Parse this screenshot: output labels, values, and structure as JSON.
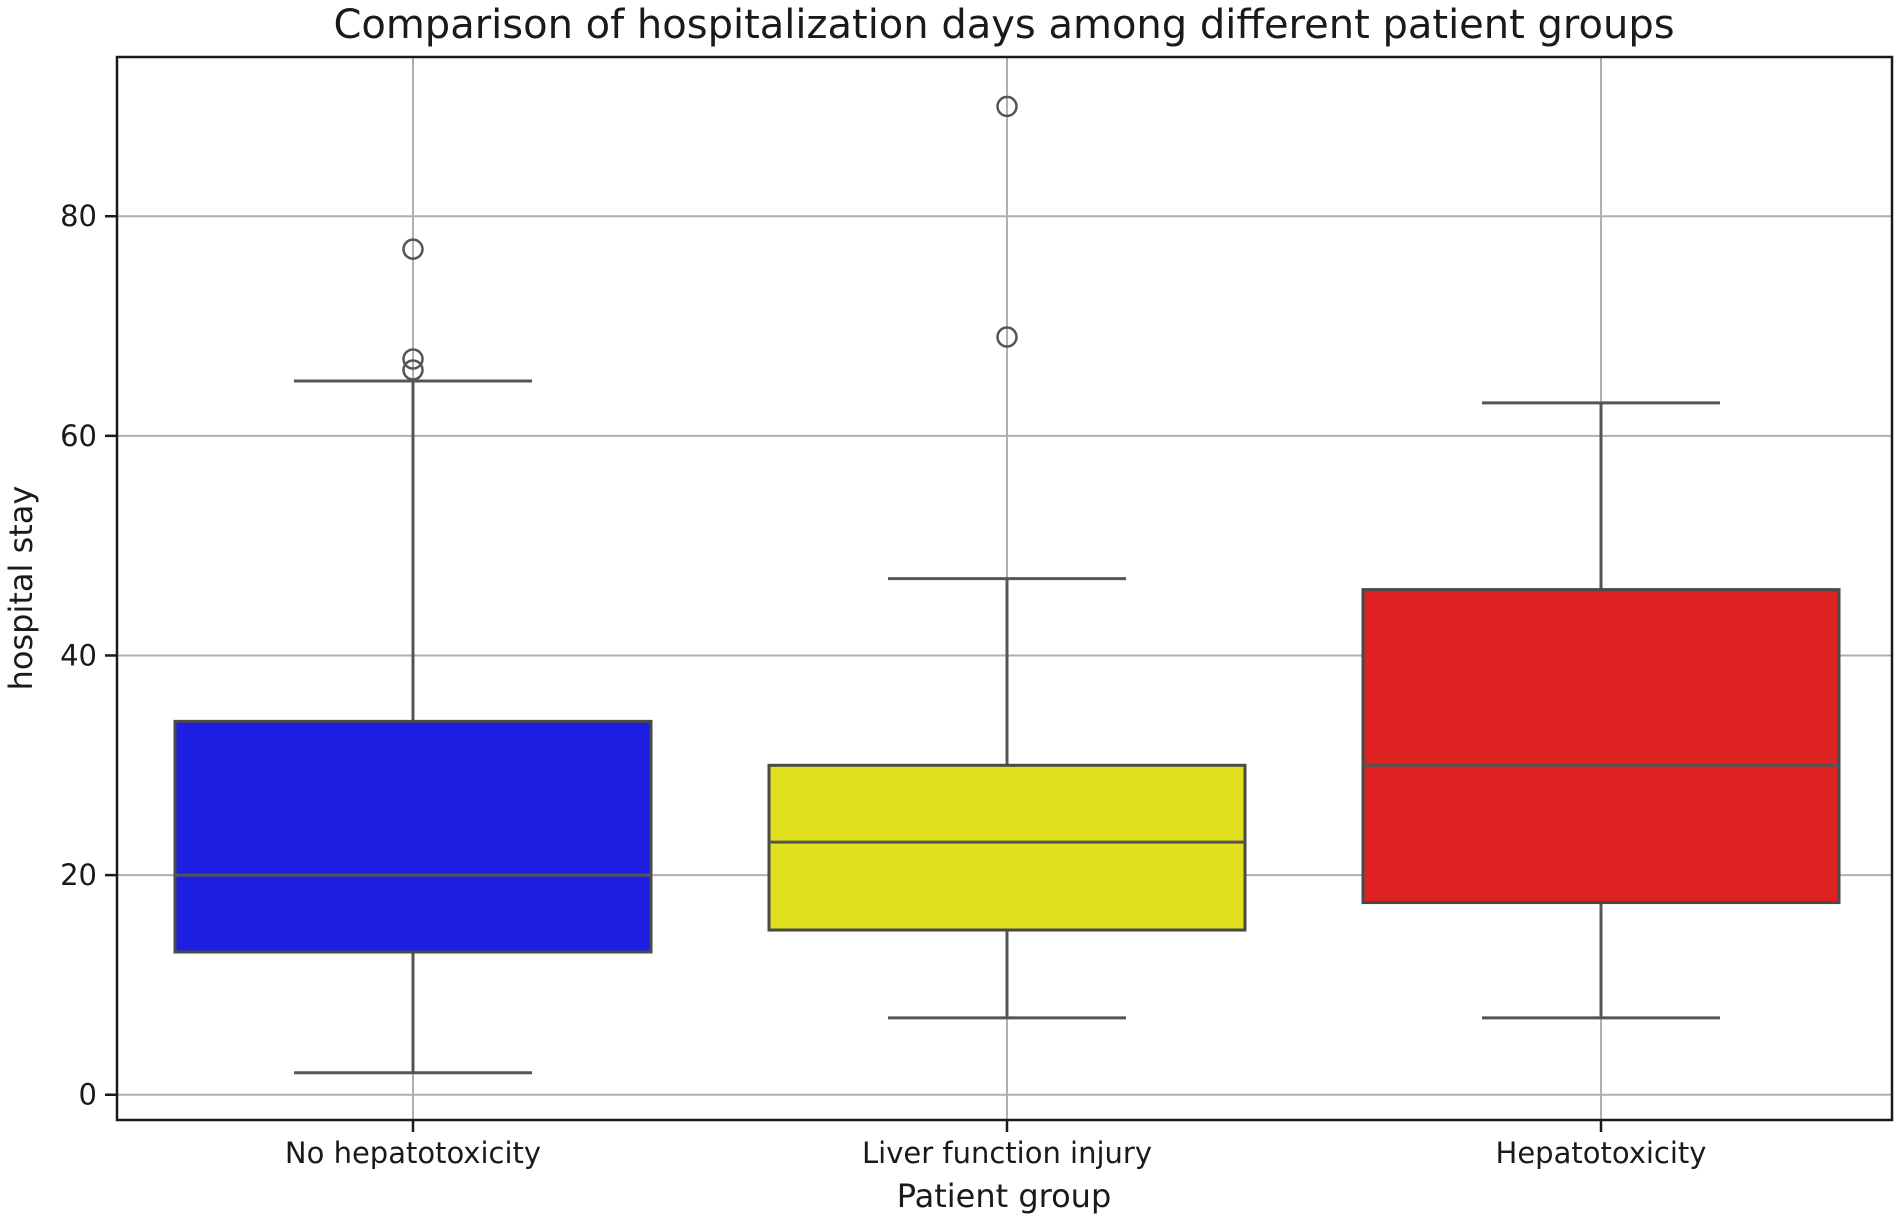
{
  "chart_data": {
    "type": "box",
    "title": "Comparison of hospitalization days among different patient groups",
    "xlabel": "Patient group",
    "ylabel": "hospital stay",
    "ylim": [
      -2.3,
      94.5
    ],
    "yticks": [
      0,
      20,
      40,
      60,
      80
    ],
    "grid": true,
    "groups": [
      {
        "name": "No hepatotoxicity",
        "color": "#1e1ee3",
        "min": 2,
        "q1": 13,
        "median": 20,
        "q3": 34,
        "max": 65,
        "outliers": [
          66,
          67,
          77
        ]
      },
      {
        "name": "Liver function injury",
        "color": "#e0e01e",
        "min": 7,
        "q1": 15,
        "median": 23,
        "q3": 30,
        "max": 47,
        "outliers": [
          69,
          90
        ]
      },
      {
        "name": "Hepatotoxicity",
        "color": "#de2121",
        "min": 7,
        "q1": 17.5,
        "median": 30,
        "q3": 46,
        "max": 63,
        "outliers": []
      }
    ]
  }
}
